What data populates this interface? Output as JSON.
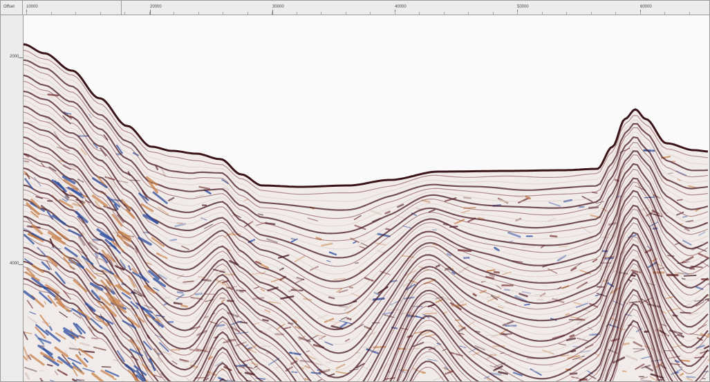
{
  "ruler": {
    "offset_label": "Offset",
    "ticks": [
      "10000",
      "20000",
      "30000",
      "40000",
      "50000",
      "60000"
    ]
  },
  "depth_axis": {
    "ticks": [
      "2000",
      "4000"
    ]
  },
  "display": {
    "background": "#fafafa",
    "palette": [
      "#4a1a24",
      "#7a3b3b",
      "#c8824a",
      "#2b4c9e",
      "#d9c7c0"
    ],
    "horizon_color": "#3a1418"
  }
}
